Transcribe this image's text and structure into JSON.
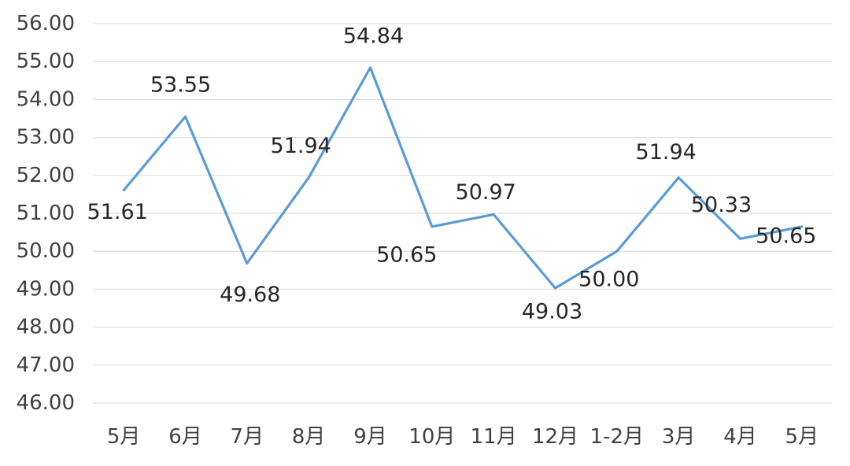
{
  "chart_data": {
    "type": "line",
    "title": "",
    "xlabel": "",
    "ylabel": "",
    "categories": [
      "5月",
      "6月",
      "7月",
      "8月",
      "9月",
      "10月",
      "11月",
      "12月",
      "1-2月",
      "3月",
      "4月",
      "5月"
    ],
    "series": [
      {
        "values": [
          51.61,
          53.55,
          49.68,
          51.94,
          54.84,
          50.65,
          50.97,
          49.03,
          50.0,
          51.94,
          50.33,
          50.65
        ],
        "labels": [
          "51.61",
          "53.55",
          "49.68",
          "51.94",
          "54.84",
          "50.65",
          "50.97",
          "49.03",
          "50.00",
          "51.94",
          "50.33",
          "50.65"
        ]
      }
    ],
    "ylim": [
      46,
      56
    ],
    "yticks": [
      46,
      47,
      48,
      49,
      50,
      51,
      52,
      53,
      54,
      55,
      56
    ],
    "ytick_labels": [
      "46.00",
      "47.00",
      "48.00",
      "49.00",
      "50.00",
      "51.00",
      "52.00",
      "53.00",
      "54.00",
      "55.00",
      "56.00"
    ],
    "grid": true,
    "legend": "none",
    "colors": {
      "line": "#5b9bd5",
      "grid": "#d9d9d9",
      "axis_text": "#404040",
      "label_text": "#262626"
    }
  }
}
